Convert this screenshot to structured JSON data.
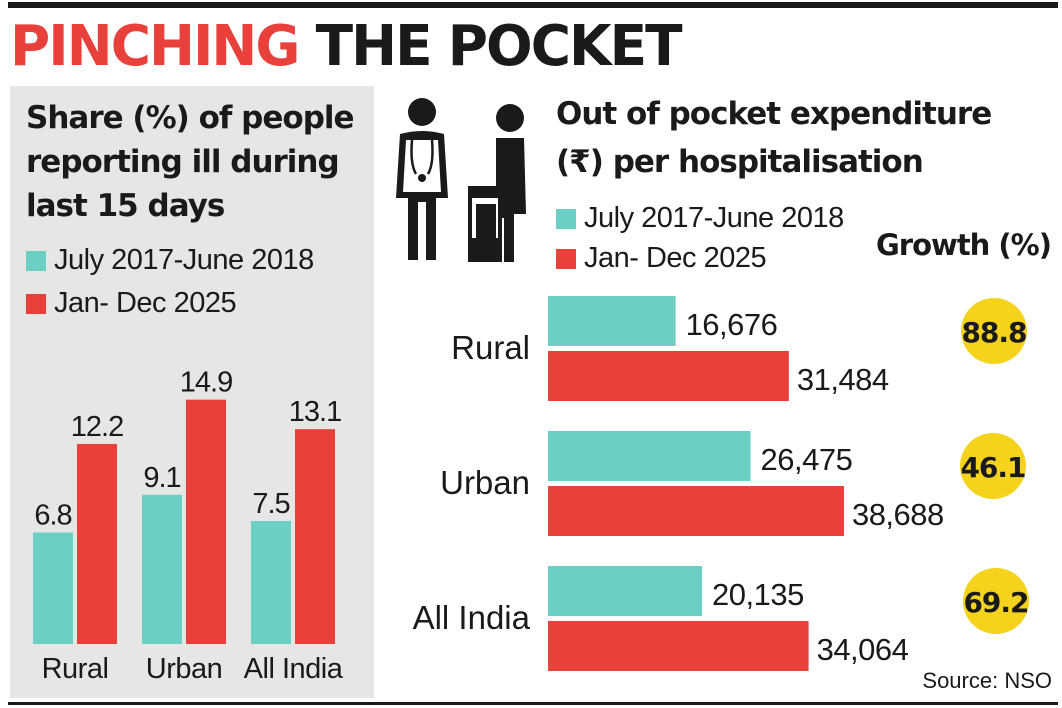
{
  "headline": {
    "part1": "PINCHING",
    "part2": "THE POCKET"
  },
  "colors": {
    "series1": "#6ccfc4",
    "series2": "#e8403a",
    "growth_badge": "#f5d21c",
    "text": "#1a1a1a"
  },
  "icons": [
    "doctor-icon",
    "patient-icon"
  ],
  "legend": {
    "series1": "July 2017-June 2018",
    "series2": "Jan- Dec 2025"
  },
  "source": "Source: NSO",
  "chart_data": [
    {
      "type": "bar",
      "title": "Share (%) of people reporting ill during last 15 days",
      "categories": [
        "Rural",
        "Urban",
        "All India"
      ],
      "series": [
        {
          "name": "July 2017-June 2018",
          "values": [
            6.8,
            9.1,
            7.5
          ]
        },
        {
          "name": "Jan- Dec 2025",
          "values": [
            12.2,
            14.9,
            13.1
          ]
        }
      ],
      "ylim": [
        0,
        16
      ]
    },
    {
      "type": "bar",
      "orientation": "horizontal",
      "title": "Out of pocket expenditure (₹) per hospitalisation",
      "categories": [
        "Rural",
        "Urban",
        "All India"
      ],
      "series": [
        {
          "name": "July 2017-June 2018",
          "values": [
            16676,
            26475,
            20135
          ],
          "labels": [
            "16,676",
            "26,475",
            "20,135"
          ]
        },
        {
          "name": "Jan- Dec 2025",
          "values": [
            31484,
            38688,
            34064
          ],
          "labels": [
            "31,484",
            "38,688",
            "34,064"
          ]
        }
      ],
      "growth_title": "Growth (%)",
      "growth": [
        88.8,
        46.1,
        69.2
      ],
      "xlim": [
        0,
        42000
      ]
    }
  ]
}
